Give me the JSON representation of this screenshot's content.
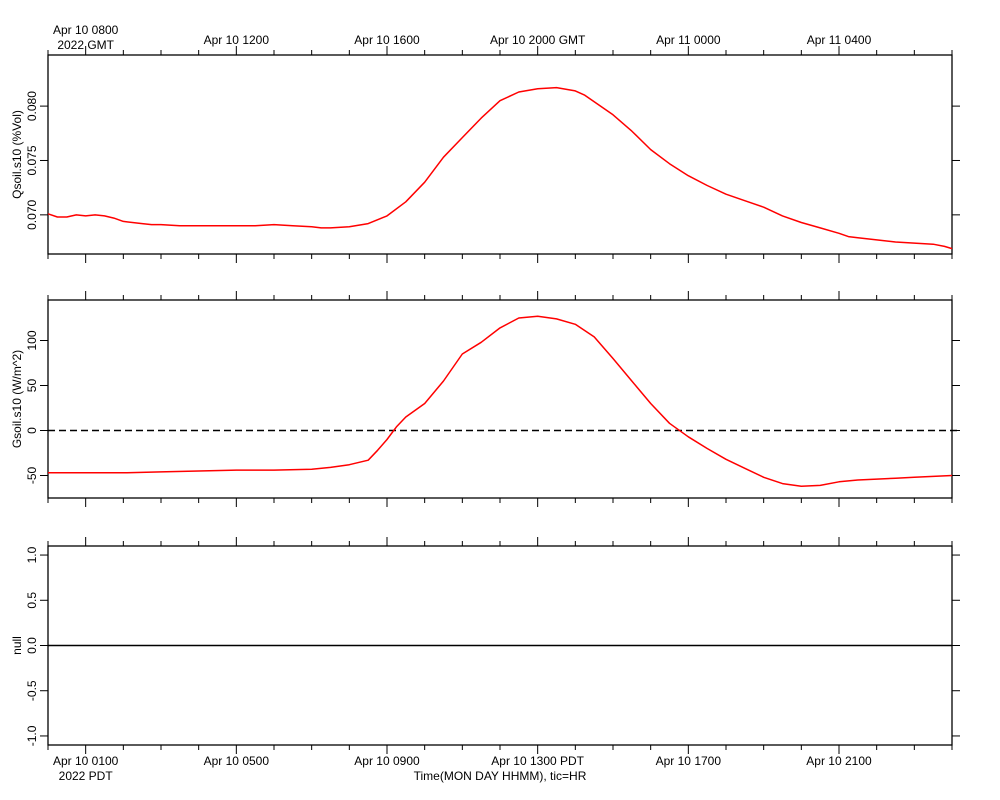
{
  "top_axis": {
    "labels": [
      {
        "hour": 1,
        "text": "Apr 10 0800",
        "sub": "2022 GMT"
      },
      {
        "hour": 5,
        "text": "Apr 10 1200"
      },
      {
        "hour": 9,
        "text": "Apr 10 1600"
      },
      {
        "hour": 13,
        "text": "Apr 10 2000 GMT"
      },
      {
        "hour": 17,
        "text": "Apr 11 0000"
      },
      {
        "hour": 21,
        "text": "Apr 11 0400"
      }
    ]
  },
  "bottom_axis": {
    "labels": [
      {
        "hour": 1,
        "text": "Apr 10 0100",
        "sub": "2022 PDT"
      },
      {
        "hour": 5,
        "text": "Apr 10 0500"
      },
      {
        "hour": 9,
        "text": "Apr 10 0900"
      },
      {
        "hour": 13,
        "text": "Apr 10 1300 PDT"
      },
      {
        "hour": 17,
        "text": "Apr 10 1700"
      },
      {
        "hour": 21,
        "text": "Apr 10 2100"
      }
    ],
    "xlabel": "Time(MON DAY HHMM), tic=HR"
  },
  "chart_data": [
    {
      "type": "line",
      "ylabel": "Qsoil.s10 (%Vol)",
      "xlim": [
        0,
        24
      ],
      "ylim": [
        0.0664,
        0.0847
      ],
      "yticks": [
        0.07,
        0.075,
        0.08
      ],
      "ytick_labels": [
        "0.070",
        "0.075",
        "0.080"
      ],
      "series": [
        {
          "color": "#ff0000",
          "x": [
            0,
            0.25,
            0.5,
            0.75,
            1.0,
            1.25,
            1.5,
            1.75,
            2.0,
            2.5,
            2.75,
            3.0,
            3.5,
            4.0,
            4.5,
            5.0,
            5.5,
            6.0,
            6.5,
            7.0,
            7.25,
            7.5,
            8.0,
            8.5,
            9.0,
            9.5,
            10.0,
            10.5,
            11.0,
            11.5,
            12.0,
            12.5,
            13.0,
            13.5,
            14.0,
            14.25,
            14.5,
            15.0,
            15.5,
            16.0,
            16.5,
            17.0,
            17.5,
            18.0,
            18.5,
            19.0,
            19.5,
            20.0,
            20.5,
            21.0,
            21.25,
            21.5,
            22.0,
            22.5,
            23.0,
            23.5,
            23.8,
            24.0
          ],
          "y": [
            0.0701,
            0.0698,
            0.0698,
            0.07,
            0.0699,
            0.07,
            0.0699,
            0.0697,
            0.0694,
            0.0692,
            0.0691,
            0.0691,
            0.069,
            0.069,
            0.069,
            0.069,
            0.069,
            0.0691,
            0.069,
            0.0689,
            0.0688,
            0.0688,
            0.0689,
            0.0692,
            0.0699,
            0.0712,
            0.073,
            0.0753,
            0.0771,
            0.0789,
            0.0805,
            0.0813,
            0.0816,
            0.0817,
            0.0814,
            0.081,
            0.0804,
            0.0792,
            0.0777,
            0.076,
            0.0747,
            0.0736,
            0.0727,
            0.0719,
            0.0713,
            0.0707,
            0.0699,
            0.0693,
            0.0688,
            0.0683,
            0.068,
            0.0679,
            0.0677,
            0.0675,
            0.0674,
            0.0673,
            0.0671,
            0.0669
          ]
        }
      ]
    },
    {
      "type": "line",
      "ylabel": "Gsoil.s10 (W/m^2)",
      "xlim": [
        0,
        24
      ],
      "ylim": [
        -75,
        145
      ],
      "yticks": [
        -50,
        0,
        50,
        100
      ],
      "ytick_labels": [
        "-50",
        "0",
        "50",
        "100"
      ],
      "reference_line": 0,
      "series": [
        {
          "color": "#ff0000",
          "x": [
            0,
            1,
            2,
            3,
            4,
            5,
            6,
            7,
            7.5,
            8.0,
            8.5,
            8.75,
            9.0,
            9.25,
            9.5,
            10.0,
            10.5,
            11.0,
            11.5,
            12.0,
            12.5,
            13.0,
            13.5,
            14.0,
            14.5,
            15.0,
            15.5,
            16.0,
            16.5,
            17.0,
            17.5,
            18.0,
            18.5,
            19.0,
            19.5,
            20.0,
            20.5,
            21.0,
            21.5,
            22.0,
            22.5,
            23.0,
            23.5,
            24.0
          ],
          "y": [
            -47,
            -47,
            -47,
            -46,
            -45,
            -44,
            -44,
            -43,
            -41,
            -38,
            -33,
            -22,
            -10,
            4,
            15,
            30,
            55,
            85,
            98,
            114,
            125,
            127,
            124,
            118,
            104,
            80,
            55,
            30,
            8,
            -7,
            -20,
            -32,
            -42,
            -52,
            -59,
            -62,
            -61,
            -57,
            -55,
            -54,
            -53,
            -52,
            -51,
            -50
          ]
        }
      ]
    },
    {
      "type": "line",
      "ylabel": "null",
      "xlim": [
        0,
        24
      ],
      "ylim": [
        -1.1,
        1.1
      ],
      "yticks": [
        -1.0,
        -0.5,
        0.0,
        0.5,
        1.0
      ],
      "ytick_labels": [
        "-1.0",
        "-0.5",
        "0.0",
        "0.5",
        "1.0"
      ],
      "series": [
        {
          "color": "#000000",
          "x": [
            0,
            24
          ],
          "y": [
            0,
            0
          ]
        }
      ]
    }
  ]
}
